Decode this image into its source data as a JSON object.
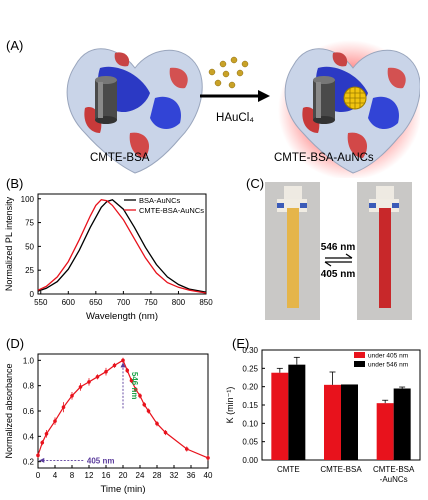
{
  "panels": {
    "a": {
      "label": "(A)",
      "reagent": "HAuCl₄",
      "left_caption": "CMTE-BSA",
      "right_caption": "CMTE-BSA-AuNCs"
    },
    "b": {
      "label": "(B)"
    },
    "c": {
      "label": "(C)",
      "forward_wavelength": "546 nm",
      "reverse_wavelength": "405 nm"
    },
    "d": {
      "label": "(D)",
      "annot_546": "546 nm",
      "annot_405": "405 nm"
    },
    "e": {
      "label": "(E)"
    }
  },
  "colors": {
    "red": "#e8121c",
    "black": "#000000",
    "green": "#1fa34a",
    "purple": "#5b3c9c",
    "strip_yellow": "#e5b54a",
    "strip_red": "#c8282a"
  },
  "chart_data": [
    {
      "panel": "B",
      "type": "line",
      "xlabel": "Wavelength (nm)",
      "ylabel": "Normalized PL intensity",
      "xlim": [
        545,
        850
      ],
      "ylim": [
        0,
        105
      ],
      "xticks": [
        550,
        600,
        650,
        700,
        750,
        800,
        850
      ],
      "yticks": [
        0,
        25,
        50,
        75,
        100
      ],
      "legend": "top-right",
      "series": [
        {
          "name": "BSA-AuNCs",
          "color": "#000000",
          "x": [
            545,
            560,
            580,
            600,
            620,
            640,
            660,
            670,
            680,
            700,
            720,
            740,
            760,
            780,
            800,
            820,
            840,
            850
          ],
          "y": [
            3,
            6,
            13,
            26,
            46,
            70,
            91,
            97,
            99,
            89,
            70,
            49,
            31,
            18,
            10,
            5,
            3,
            2
          ]
        },
        {
          "name": "CMTE-BSA-AuNCs",
          "color": "#e8121c",
          "x": [
            545,
            560,
            580,
            600,
            620,
            640,
            650,
            660,
            670,
            680,
            700,
            720,
            740,
            760,
            780,
            800,
            820,
            840,
            850
          ],
          "y": [
            4,
            8,
            18,
            34,
            57,
            82,
            93,
            99,
            98,
            93,
            78,
            58,
            38,
            22,
            12,
            7,
            4,
            2,
            1
          ]
        }
      ]
    },
    {
      "panel": "D",
      "type": "line",
      "xlabel": "Time (min)",
      "ylabel": "Normalized absorbance",
      "xlim": [
        0,
        40
      ],
      "ylim": [
        0.15,
        1.05
      ],
      "xticks": [
        0,
        4,
        8,
        12,
        16,
        20,
        24,
        28,
        32,
        36,
        40
      ],
      "yticks": [
        0.2,
        0.4,
        0.6,
        0.8,
        1.0
      ],
      "series": [
        {
          "color": "#e8121c",
          "x": [
            0,
            1,
            2,
            4,
            6,
            8,
            10,
            12,
            14,
            16,
            18,
            20,
            21,
            22,
            23,
            24,
            25,
            26,
            28,
            30,
            35,
            40
          ],
          "y": [
            0.25,
            0.35,
            0.42,
            0.52,
            0.63,
            0.72,
            0.79,
            0.83,
            0.87,
            0.91,
            0.96,
            1.0,
            0.92,
            0.84,
            0.77,
            0.72,
            0.65,
            0.6,
            0.5,
            0.43,
            0.3,
            0.23
          ],
          "err": [
            0.02,
            0.02,
            0.03,
            0.03,
            0.04,
            0.03,
            0.03,
            0.03,
            0.02,
            0.03,
            0.02,
            0.02,
            0.02,
            0.02,
            0.02,
            0.02,
            0.02,
            0.02,
            0.02,
            0.02,
            0.02,
            0.02
          ]
        }
      ]
    },
    {
      "panel": "E",
      "type": "bar",
      "ylabel": "K (min⁻¹)",
      "categories": [
        "CMTE",
        "CMTE-BSA",
        "CMTE-BSA\n-AuNCs"
      ],
      "ylim": [
        0,
        0.3
      ],
      "yticks": [
        0.0,
        0.05,
        0.1,
        0.15,
        0.2,
        0.25,
        0.3
      ],
      "legend": "top-right",
      "series": [
        {
          "name": "under 405 nm",
          "color": "#e8121c",
          "values": [
            0.238,
            0.205,
            0.155
          ],
          "err": [
            0.012,
            0.035,
            0.008
          ]
        },
        {
          "name": "under 546 nm",
          "color": "#000000",
          "values": [
            0.26,
            0.206,
            0.195
          ],
          "err": [
            0.02,
            0.0,
            0.004
          ]
        }
      ]
    }
  ]
}
